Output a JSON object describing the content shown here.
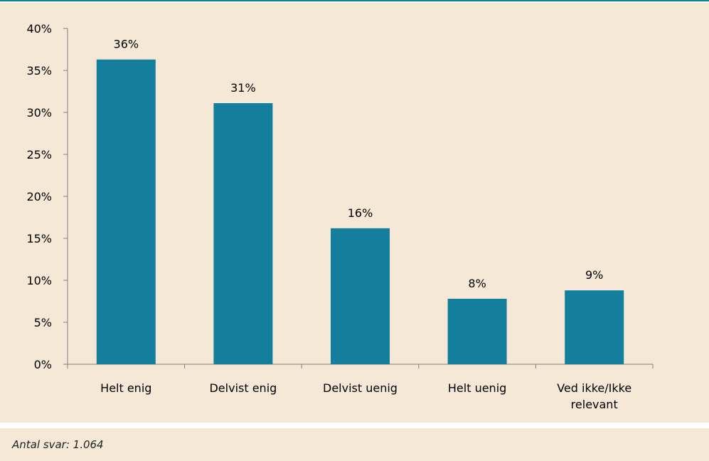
{
  "colors": {
    "accent": "#137f9c",
    "bar": "#137f9c",
    "panel_background": "#f6e8d7",
    "axis": "#7f7f7f"
  },
  "footer": {
    "note": "Antal svar: 1.064"
  },
  "chart_data": {
    "type": "bar",
    "categories": [
      [
        "Helt enig"
      ],
      [
        "Delvist enig"
      ],
      [
        "Delvist uenig"
      ],
      [
        "Helt uenig"
      ],
      [
        "Ved ikke/Ikke",
        "relevant"
      ]
    ],
    "values": [
      36.3,
      31.1,
      16.2,
      7.8,
      8.8
    ],
    "data_labels": [
      "36%",
      "31%",
      "16%",
      "8%",
      "9%"
    ],
    "ylim": [
      0,
      40
    ],
    "y_ticks": [
      0,
      5,
      10,
      15,
      20,
      25,
      30,
      35,
      40
    ],
    "y_tick_labels": [
      "0%",
      "5%",
      "10%",
      "15%",
      "20%",
      "25%",
      "30%",
      "35%",
      "40%"
    ],
    "title": "",
    "xlabel": "",
    "ylabel": "",
    "grid": false,
    "legend": "none"
  }
}
